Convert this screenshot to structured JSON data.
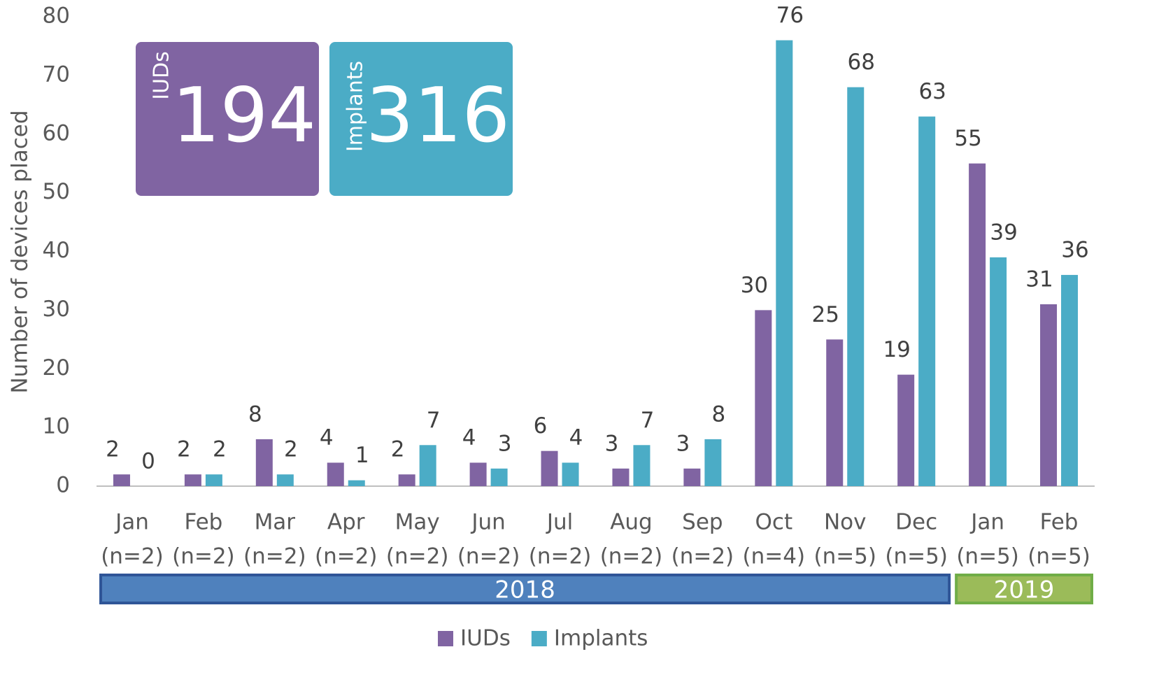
{
  "chart_data": {
    "type": "bar",
    "y_label": "Number of devices placed",
    "categories": [
      [
        "Jan",
        "(n=2)"
      ],
      [
        "Feb",
        "(n=2)"
      ],
      [
        "Mar",
        "(n=2)"
      ],
      [
        "Apr",
        "(n=2)"
      ],
      [
        "May",
        "(n=2)"
      ],
      [
        "Jun",
        "(n=2)"
      ],
      [
        "Jul",
        "(n=2)"
      ],
      [
        "Aug",
        "(n=2)"
      ],
      [
        "Sep",
        "(n=2)"
      ],
      [
        "Oct",
        "(n=4)"
      ],
      [
        "Nov",
        "(n=5)"
      ],
      [
        "Dec",
        "(n=5)"
      ],
      [
        "Jan",
        "(n=5)"
      ],
      [
        "Feb",
        "(n=5)"
      ]
    ],
    "series": [
      {
        "name": "IUDs",
        "color": "#8064a2",
        "values": [
          2,
          2,
          8,
          4,
          2,
          4,
          6,
          3,
          3,
          30,
          25,
          19,
          55,
          31
        ]
      },
      {
        "name": "Implants",
        "color": "#4bacc6",
        "values": [
          0,
          2,
          2,
          1,
          7,
          3,
          4,
          7,
          8,
          76,
          68,
          63,
          39,
          36
        ]
      }
    ],
    "groups": [
      {
        "label": "2018",
        "count": 12,
        "color": "#4f81bd",
        "border": "#2f5597"
      },
      {
        "label": "2019",
        "count": 2,
        "color": "#9bbb59",
        "border": "#70ad47"
      }
    ],
    "callouts": [
      {
        "label": "IUDs",
        "value": 194,
        "color": "#8064a2"
      },
      {
        "label": "Implants",
        "value": 316,
        "color": "#4bacc6"
      }
    ],
    "ylim": [
      0,
      80
    ],
    "yticks": [
      0,
      10,
      20,
      30,
      40,
      50,
      60,
      70,
      80
    ],
    "grid": false,
    "legend": "bottom"
  }
}
